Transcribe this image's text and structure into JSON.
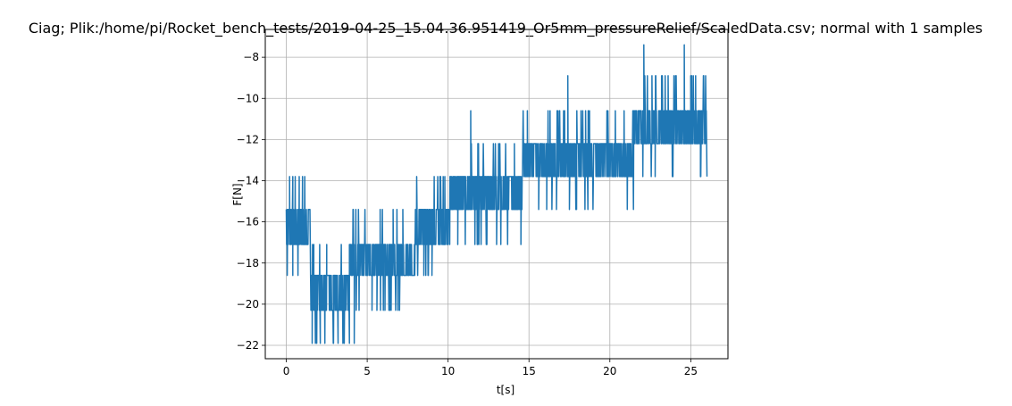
{
  "chart_data": {
    "type": "line",
    "title": "Ciag; Plik:/home/pi/Rocket_bench_tests/2019-04-25_15.04.36.951419_Or5mm_pressureRelief/ScaledData.csv; normal with 1 samples",
    "xlabel": "t[s]",
    "ylabel": "F[N]",
    "xlim": [
      -1.3,
      27.3
    ],
    "ylim": [
      -22.65,
      -6.65
    ],
    "xticks": [
      0,
      5,
      10,
      15,
      20,
      25
    ],
    "yticks": [
      -22,
      -20,
      -18,
      -16,
      -14,
      -12,
      -10,
      -8
    ],
    "xtick_labels": [
      "0",
      "5",
      "10",
      "15",
      "20",
      "25"
    ],
    "ytick_labels": [
      "−22",
      "−20",
      "−18",
      "−16",
      "−14",
      "−12",
      "−10",
      "−8"
    ],
    "grid": true,
    "line_color": "#1f77b4",
    "quantization_step": 0.8,
    "segments": [
      {
        "t": [
          0.0,
          1.5
        ],
        "base": [
          -17.1,
          -15.4
        ],
        "high": -13.8,
        "low": -18.6,
        "spikes": [
          [
            0.2,
            -13.8
          ],
          [
            0.4,
            -13.8
          ],
          [
            0.55,
            -13.8
          ],
          [
            0.8,
            -13.8
          ],
          [
            1.0,
            -13.8
          ],
          [
            0.4,
            -18.6
          ]
        ]
      },
      {
        "t": [
          1.5,
          3.9
        ],
        "base": [
          -20.3,
          -18.6
        ],
        "high": -17.1,
        "low": -21.9,
        "spikes": [
          [
            1.6,
            -21.9
          ],
          [
            1.8,
            -21.9
          ],
          [
            2.1,
            -21.9
          ],
          [
            2.9,
            -21.9
          ],
          [
            3.2,
            -21.9
          ],
          [
            3.5,
            -21.9
          ],
          [
            3.9,
            -21.9
          ],
          [
            1.7,
            -17.1
          ],
          [
            2.5,
            -17.1
          ],
          [
            3.4,
            -17.1
          ]
        ]
      },
      {
        "t": [
          3.9,
          8.0
        ],
        "base": [
          -18.6,
          -17.1
        ],
        "high": -15.4,
        "low": -20.3,
        "spikes": [
          [
            4.2,
            -21.9
          ],
          [
            5.3,
            -20.3
          ],
          [
            5.6,
            -20.3
          ],
          [
            6.1,
            -20.3
          ],
          [
            6.4,
            -20.3
          ],
          [
            7.0,
            -20.3
          ],
          [
            5.8,
            -15.4
          ],
          [
            6.6,
            -15.4
          ],
          [
            7.2,
            -15.4
          ]
        ]
      },
      {
        "t": [
          8.0,
          10.0
        ],
        "base": [
          -17.1,
          -15.4
        ],
        "high": -13.8,
        "low": -18.6,
        "spikes": [
          [
            8.5,
            -18.6
          ],
          [
            9.0,
            -18.6
          ],
          [
            9.5,
            -13.8
          ],
          [
            9.8,
            -13.8
          ]
        ]
      },
      {
        "t": [
          10.0,
          14.6
        ],
        "base": [
          -15.4,
          -13.8
        ],
        "high": -12.2,
        "low": -17.1,
        "spikes": [
          [
            11.4,
            -10.6
          ],
          [
            13.2,
            -12.2
          ],
          [
            14.1,
            -12.2
          ],
          [
            10.6,
            -17.1
          ],
          [
            11.9,
            -17.1
          ],
          [
            12.4,
            -17.1
          ],
          [
            13.0,
            -17.1
          ],
          [
            14.5,
            -17.1
          ]
        ]
      },
      {
        "t": [
          14.6,
          21.5
        ],
        "base": [
          -13.8,
          -12.2
        ],
        "high": -10.6,
        "low": -15.4,
        "spikes": [
          [
            14.9,
            -10.6
          ],
          [
            16.3,
            -10.6
          ],
          [
            16.9,
            -10.6
          ],
          [
            17.2,
            -10.6
          ],
          [
            17.4,
            -8.9
          ],
          [
            18.5,
            -10.6
          ],
          [
            15.6,
            -15.4
          ],
          [
            16.1,
            -15.4
          ],
          [
            16.7,
            -15.4
          ],
          [
            17.5,
            -15.4
          ]
        ]
      },
      {
        "t": [
          21.5,
          26.0
        ],
        "base": [
          -12.2,
          -10.6
        ],
        "high": -8.9,
        "low": -13.8,
        "spikes": [
          [
            22.1,
            -7.4
          ],
          [
            24.6,
            -7.4
          ],
          [
            22.6,
            -8.9
          ],
          [
            23.2,
            -8.9
          ],
          [
            23.6,
            -8.9
          ],
          [
            24.1,
            -8.9
          ],
          [
            25.0,
            -8.9
          ],
          [
            25.3,
            -8.9
          ],
          [
            25.8,
            -8.9
          ],
          [
            22.8,
            -13.8
          ],
          [
            23.9,
            -13.8
          ],
          [
            25.6,
            -13.8
          ]
        ]
      }
    ]
  }
}
